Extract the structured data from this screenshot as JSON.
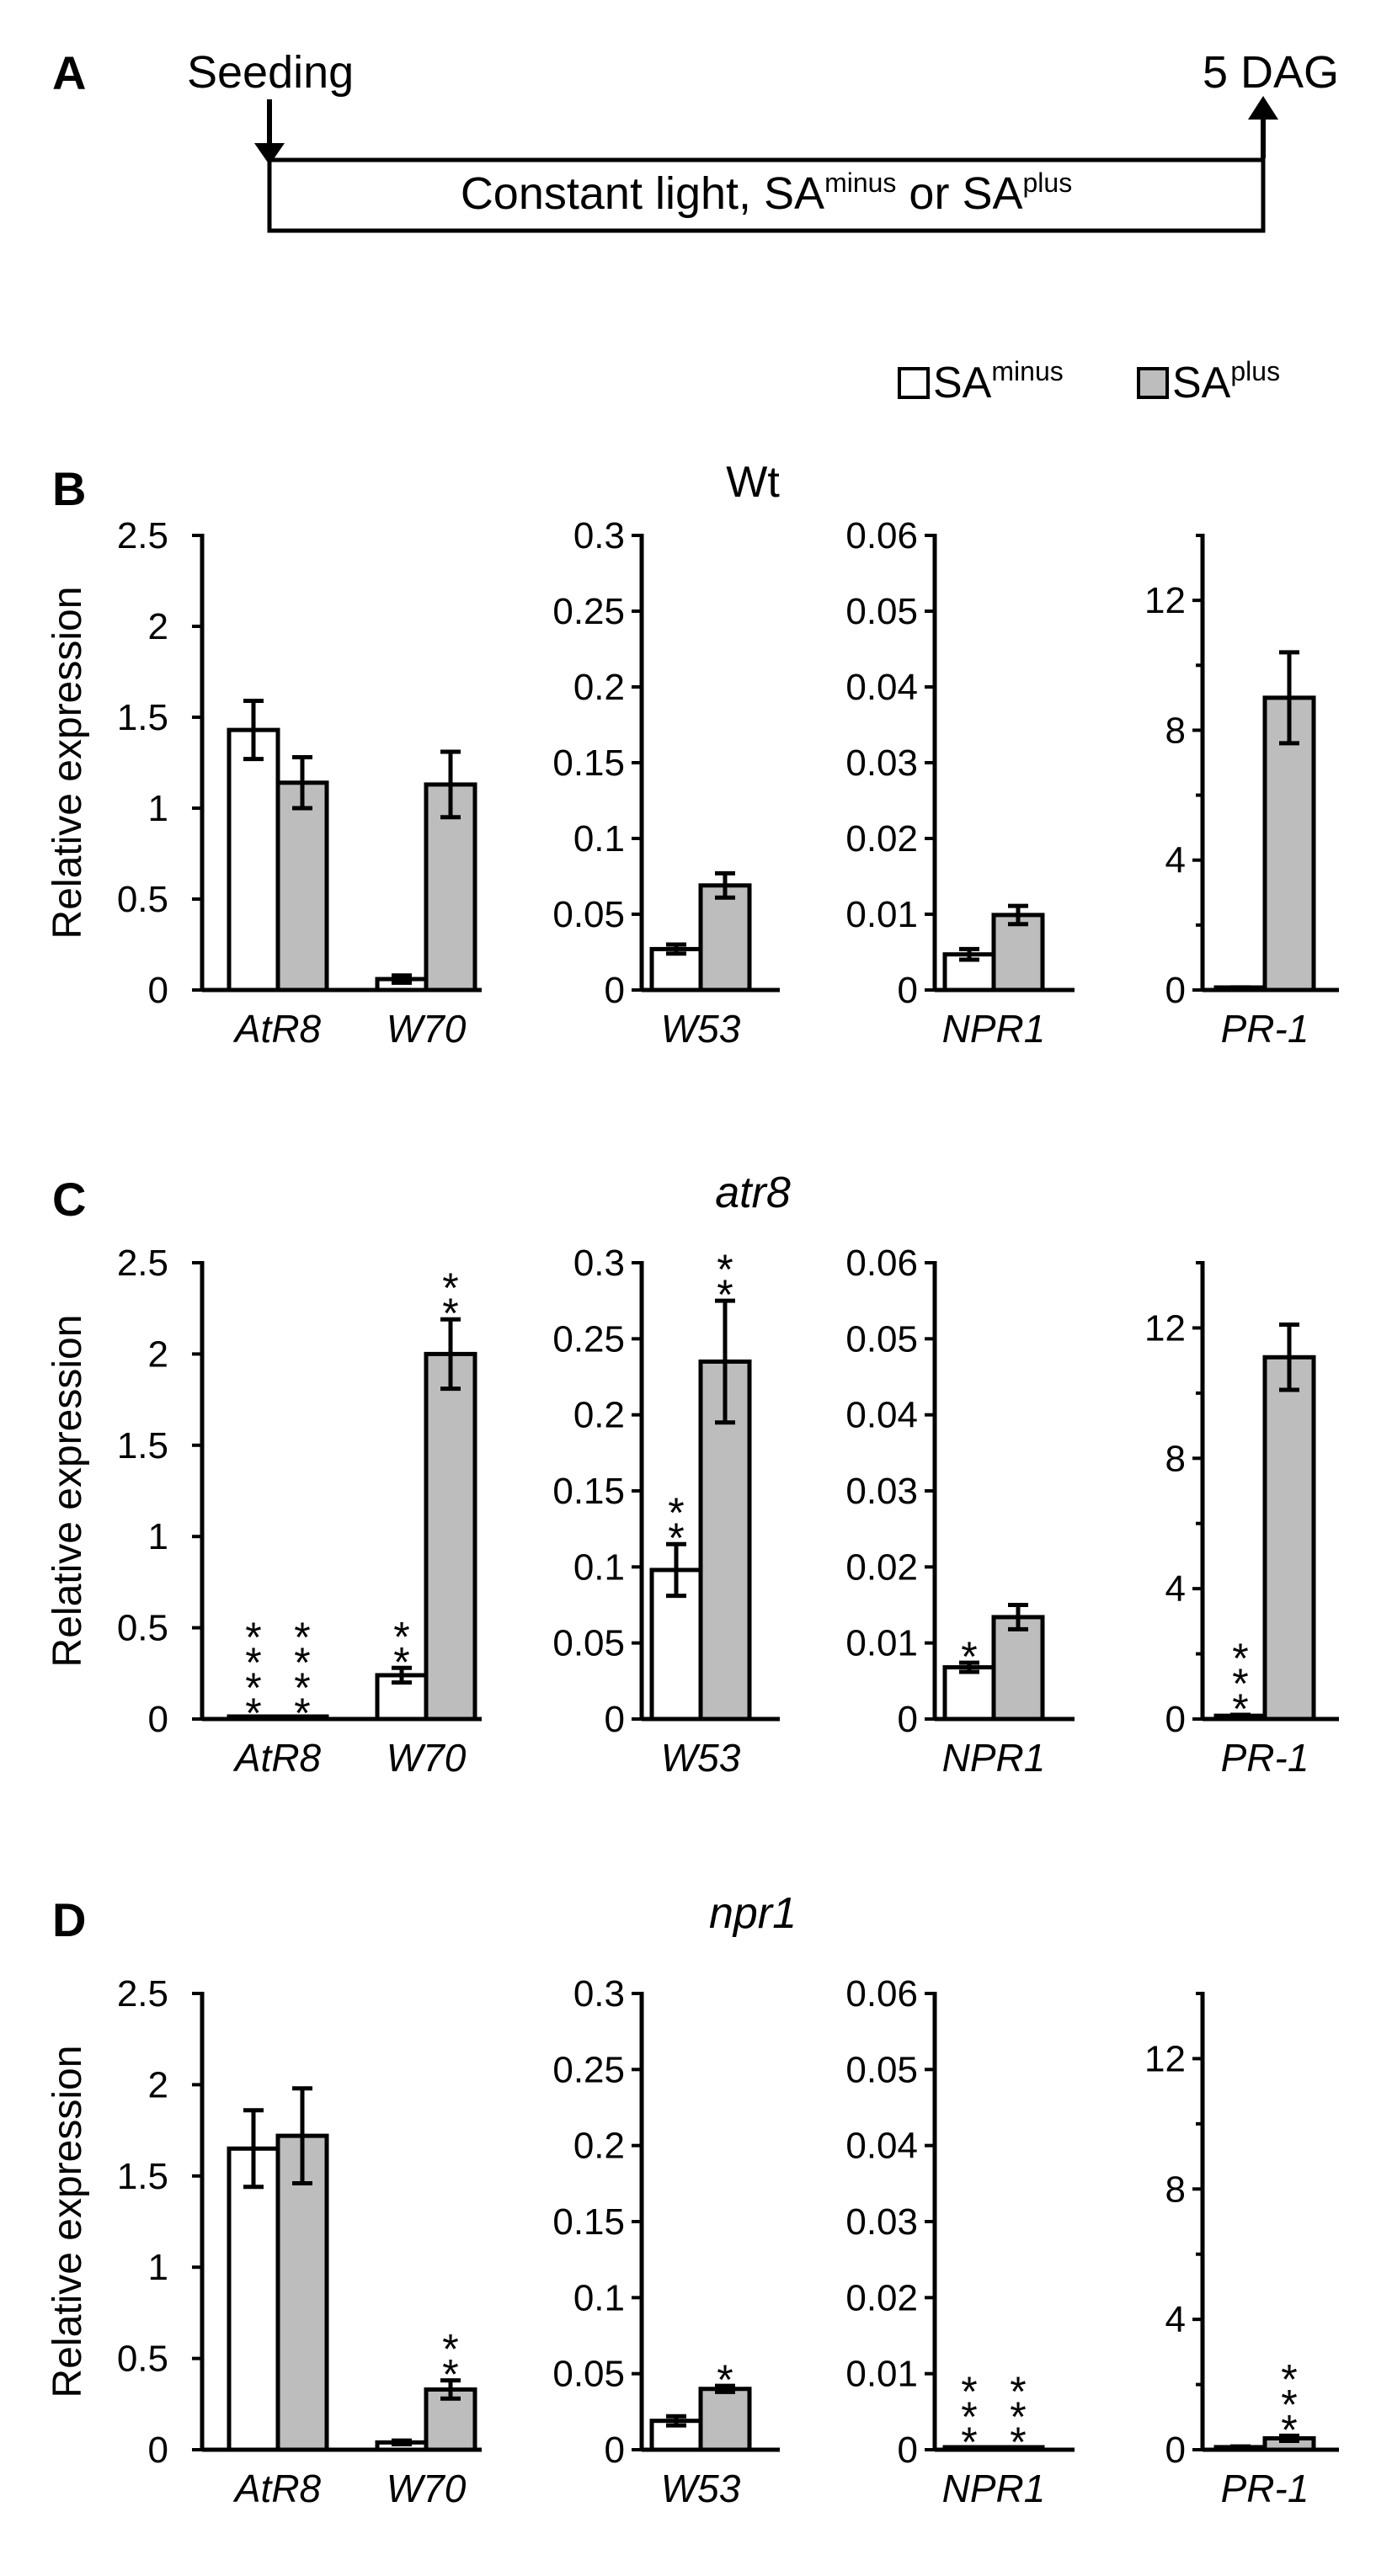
{
  "timeline": {
    "panel_label": "A",
    "start_label": "Seeding",
    "end_label": "5 DAG",
    "box_text_main": "Constant light, SA",
    "box_sup_1": "minus",
    "box_text_mid": " or SA",
    "box_sup_2": "plus"
  },
  "legend": {
    "minus_base": "SA",
    "minus_sup": "minus",
    "plus_base": "SA",
    "plus_sup": "plus",
    "minus_color": "#ffffff",
    "plus_color": "#bdbdbd"
  },
  "chart_data": [
    {
      "panel": "B",
      "title": "Wt",
      "title_italic": false,
      "type": "bar",
      "ylabel": "Relative expression",
      "subplots": [
        {
          "categories": [
            "AtR8",
            "W70"
          ],
          "ylim": [
            0,
            2.5
          ],
          "ticks": [
            0,
            0.5,
            1,
            1.5,
            2,
            2.5
          ],
          "tick_labels": [
            "0",
            "0.5",
            "1",
            "1.5",
            "2",
            "2.5"
          ],
          "series": [
            {
              "name": "SA minus",
              "values": [
                1.43,
                0.06
              ],
              "errors": [
                0.16,
                0.02
              ],
              "sig": [
                "",
                ""
              ]
            },
            {
              "name": "SA plus",
              "values": [
                1.14,
                1.13
              ],
              "errors": [
                0.14,
                0.18
              ],
              "sig": [
                "",
                ""
              ]
            }
          ]
        },
        {
          "categories": [
            "W53"
          ],
          "ylim": [
            0,
            0.3
          ],
          "ticks": [
            0,
            0.05,
            0.1,
            0.15,
            0.2,
            0.25,
            0.3
          ],
          "tick_labels": [
            "0",
            "0.05",
            "0.1",
            "0.15",
            "0.2",
            "0.25",
            "0.3"
          ],
          "series": [
            {
              "name": "SA minus",
              "values": [
                0.027
              ],
              "errors": [
                0.003
              ],
              "sig": [
                ""
              ]
            },
            {
              "name": "SA plus",
              "values": [
                0.069
              ],
              "errors": [
                0.008
              ],
              "sig": [
                ""
              ]
            }
          ]
        },
        {
          "categories": [
            "NPR1"
          ],
          "ylim": [
            0,
            0.06
          ],
          "ticks": [
            0,
            0.01,
            0.02,
            0.03,
            0.04,
            0.05,
            0.06
          ],
          "tick_labels": [
            "0",
            "0.01",
            "0.02",
            "0.03",
            "0.04",
            "0.05",
            "0.06"
          ],
          "series": [
            {
              "name": "SA minus",
              "values": [
                0.0047
              ],
              "errors": [
                0.0007
              ],
              "sig": [
                ""
              ]
            },
            {
              "name": "SA plus",
              "values": [
                0.0099
              ],
              "errors": [
                0.0012
              ],
              "sig": [
                ""
              ]
            }
          ]
        },
        {
          "categories": [
            "PR-1"
          ],
          "ylim": [
            0,
            14
          ],
          "ticks": [
            0,
            4,
            8,
            12
          ],
          "tick_labels": [
            "0",
            "4",
            "8",
            "12"
          ],
          "series": [
            {
              "name": "SA minus",
              "values": [
                0.05
              ],
              "errors": [
                0.03
              ],
              "sig": [
                ""
              ]
            },
            {
              "name": "SA plus",
              "values": [
                9.0
              ],
              "errors": [
                1.4
              ],
              "sig": [
                ""
              ]
            }
          ]
        }
      ]
    },
    {
      "panel": "C",
      "title": "atr8",
      "title_italic": true,
      "type": "bar",
      "ylabel": "Relative expression",
      "subplots": [
        {
          "categories": [
            "AtR8",
            "W70"
          ],
          "ylim": [
            0,
            2.5
          ],
          "ticks": [
            0,
            0.5,
            1,
            1.5,
            2,
            2.5
          ],
          "tick_labels": [
            "0",
            "0.5",
            "1",
            "1.5",
            "2",
            "2.5"
          ],
          "series": [
            {
              "name": "SA minus",
              "values": [
                0.001,
                0.24
              ],
              "errors": [
                0,
                0.04
              ],
              "sig": [
                "****",
                "**"
              ]
            },
            {
              "name": "SA plus",
              "values": [
                0.001,
                2.0
              ],
              "errors": [
                0,
                0.19
              ],
              "sig": [
                "****",
                "**"
              ]
            }
          ]
        },
        {
          "categories": [
            "W53"
          ],
          "ylim": [
            0,
            0.3
          ],
          "ticks": [
            0,
            0.05,
            0.1,
            0.15,
            0.2,
            0.25,
            0.3
          ],
          "tick_labels": [
            "0",
            "0.05",
            "0.1",
            "0.15",
            "0.2",
            "0.25",
            "0.3"
          ],
          "series": [
            {
              "name": "SA minus",
              "values": [
                0.098
              ],
              "errors": [
                0.017
              ],
              "sig": [
                "**"
              ]
            },
            {
              "name": "SA plus",
              "values": [
                0.235
              ],
              "errors": [
                0.04
              ],
              "sig": [
                "**"
              ]
            }
          ]
        },
        {
          "categories": [
            "NPR1"
          ],
          "ylim": [
            0,
            0.06
          ],
          "ticks": [
            0,
            0.01,
            0.02,
            0.03,
            0.04,
            0.05,
            0.06
          ],
          "tick_labels": [
            "0",
            "0.01",
            "0.02",
            "0.03",
            "0.04",
            "0.05",
            "0.06"
          ],
          "series": [
            {
              "name": "SA minus",
              "values": [
                0.0068
              ],
              "errors": [
                0.0006
              ],
              "sig": [
                "*"
              ]
            },
            {
              "name": "SA plus",
              "values": [
                0.0134
              ],
              "errors": [
                0.0016
              ],
              "sig": [
                ""
              ]
            }
          ]
        },
        {
          "categories": [
            "PR-1"
          ],
          "ylim": [
            0,
            14
          ],
          "ticks": [
            0,
            4,
            8,
            12
          ],
          "tick_labels": [
            "0",
            "4",
            "8",
            "12"
          ],
          "series": [
            {
              "name": "SA minus",
              "values": [
                0.1
              ],
              "errors": [
                0.03
              ],
              "sig": [
                "***"
              ]
            },
            {
              "name": "SA plus",
              "values": [
                11.1
              ],
              "errors": [
                1.0
              ],
              "sig": [
                ""
              ]
            }
          ]
        }
      ]
    },
    {
      "panel": "D",
      "title": "npr1",
      "title_italic": true,
      "type": "bar",
      "ylabel": "Relative expression",
      "subplots": [
        {
          "categories": [
            "AtR8",
            "W70"
          ],
          "ylim": [
            0,
            2.5
          ],
          "ticks": [
            0,
            0.5,
            1,
            1.5,
            2,
            2.5
          ],
          "tick_labels": [
            "0",
            "0.5",
            "1",
            "1.5",
            "2",
            "2.5"
          ],
          "series": [
            {
              "name": "SA minus",
              "values": [
                1.65,
                0.04
              ],
              "errors": [
                0.21,
                0.01
              ],
              "sig": [
                "",
                ""
              ]
            },
            {
              "name": "SA plus",
              "values": [
                1.72,
                0.33
              ],
              "errors": [
                0.26,
                0.05
              ],
              "sig": [
                "",
                "**"
              ]
            }
          ]
        },
        {
          "categories": [
            "W53"
          ],
          "ylim": [
            0,
            0.3
          ],
          "ticks": [
            0,
            0.05,
            0.1,
            0.15,
            0.2,
            0.25,
            0.3
          ],
          "tick_labels": [
            "0",
            "0.05",
            "0.1",
            "0.15",
            "0.2",
            "0.25",
            "0.3"
          ],
          "series": [
            {
              "name": "SA minus",
              "values": [
                0.019
              ],
              "errors": [
                0.003
              ],
              "sig": [
                ""
              ]
            },
            {
              "name": "SA plus",
              "values": [
                0.04
              ],
              "errors": [
                0.002
              ],
              "sig": [
                "*"
              ]
            }
          ]
        },
        {
          "categories": [
            "NPR1"
          ],
          "ylim": [
            0,
            0.06
          ],
          "ticks": [
            0,
            0.01,
            0.02,
            0.03,
            0.04,
            0.05,
            0.06
          ],
          "tick_labels": [
            "0",
            "0.01",
            "0.02",
            "0.03",
            "0.04",
            "0.05",
            "0.06"
          ],
          "series": [
            {
              "name": "SA minus",
              "values": [
                0.0002
              ],
              "errors": [
                0
              ],
              "sig": [
                "***"
              ]
            },
            {
              "name": "SA plus",
              "values": [
                0.0002
              ],
              "errors": [
                0
              ],
              "sig": [
                "***"
              ]
            }
          ]
        },
        {
          "categories": [
            "PR-1"
          ],
          "ylim": [
            0,
            14
          ],
          "ticks": [
            0,
            4,
            8,
            12
          ],
          "tick_labels": [
            "0",
            "4",
            "8",
            "12"
          ],
          "series": [
            {
              "name": "SA minus",
              "values": [
                0.08
              ],
              "errors": [
                0.02
              ],
              "sig": [
                ""
              ]
            },
            {
              "name": "SA plus",
              "values": [
                0.35
              ],
              "errors": [
                0.08
              ],
              "sig": [
                "***"
              ]
            }
          ]
        }
      ]
    }
  ]
}
